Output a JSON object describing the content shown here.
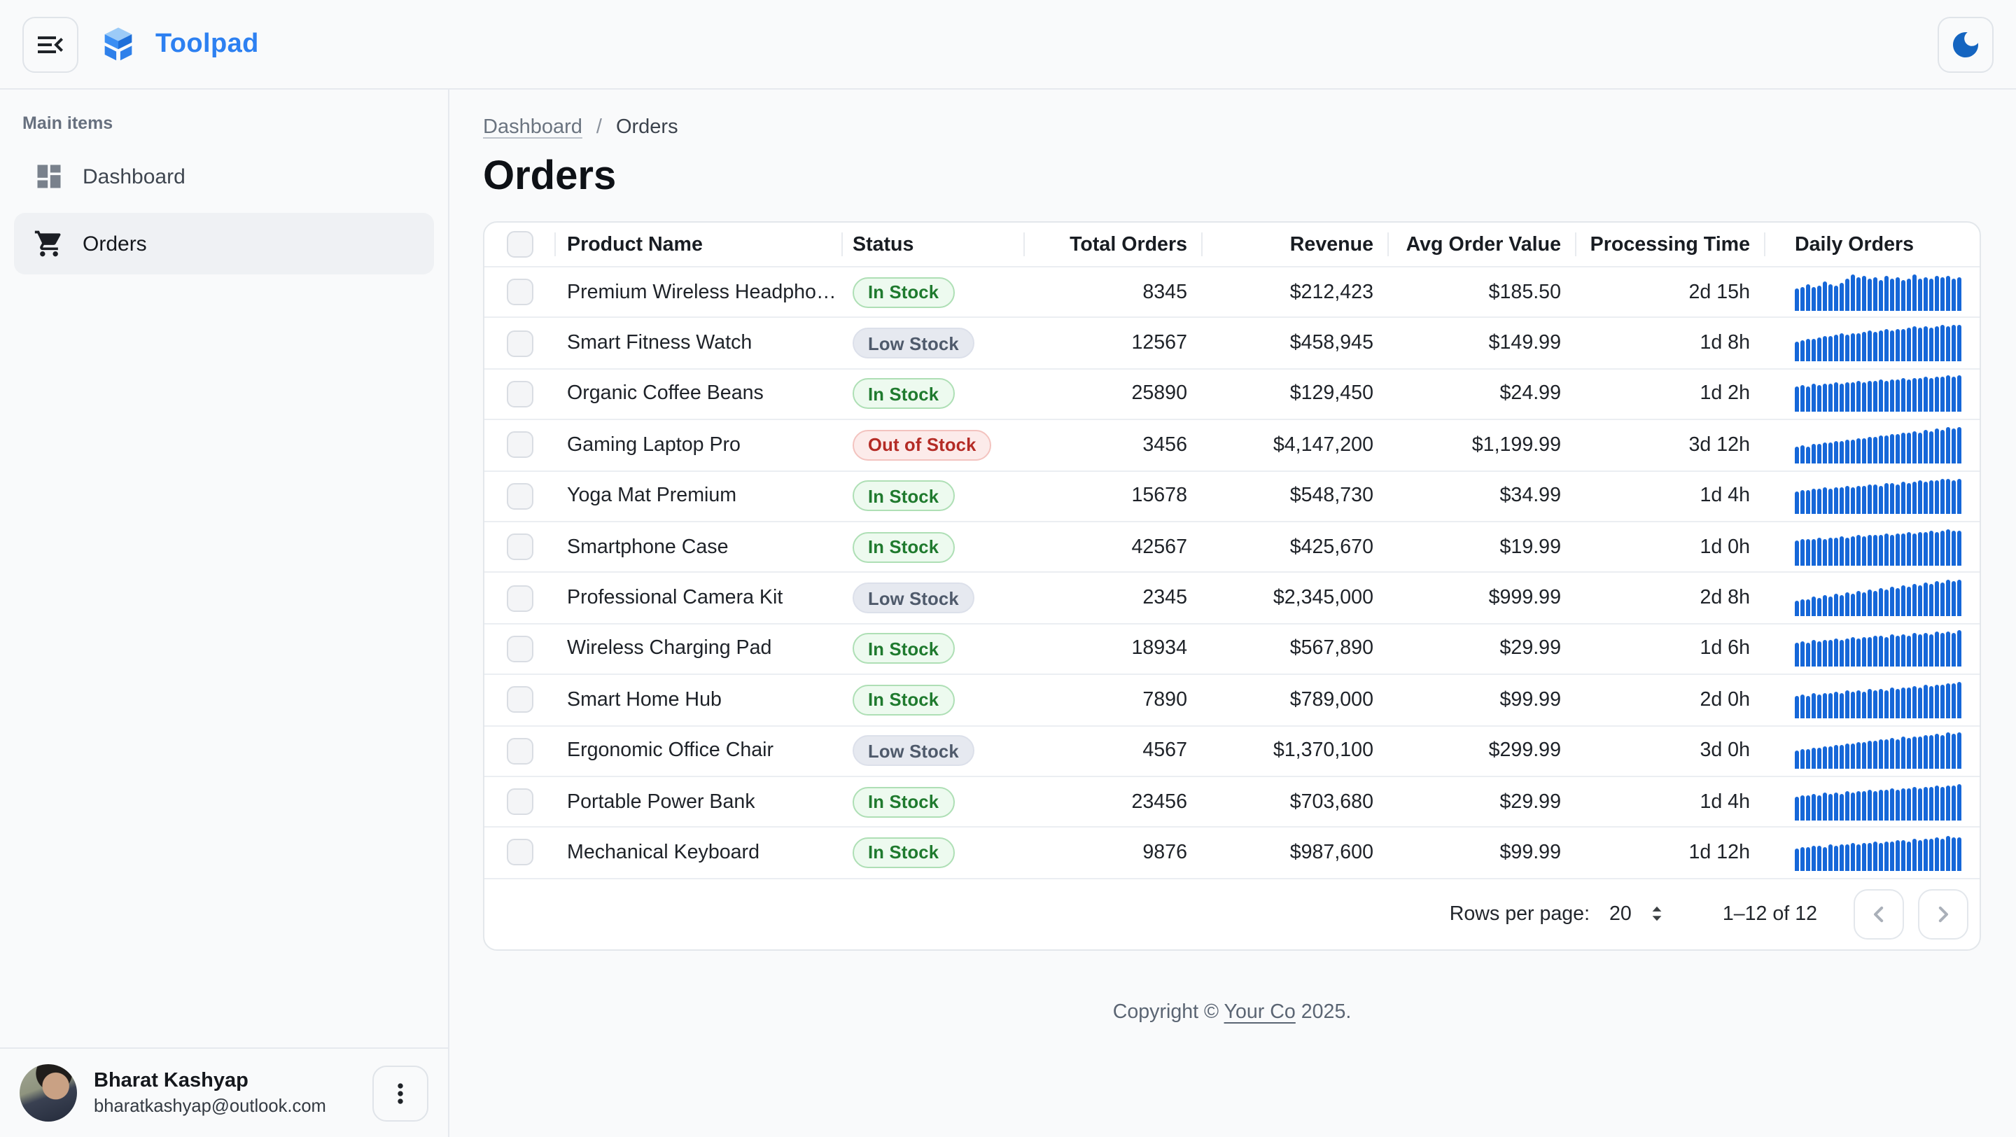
{
  "topbar": {
    "app_name": "Toolpad"
  },
  "sidebar": {
    "section_label": "Main items",
    "items": [
      {
        "label": "Dashboard",
        "icon": "dashboard-icon",
        "active": false
      },
      {
        "label": "Orders",
        "icon": "shopping-cart-icon",
        "active": true
      }
    ]
  },
  "user": {
    "name": "Bharat Kashyap",
    "email": "bharatkashyap@outlook.com"
  },
  "breadcrumb": {
    "link": "Dashboard",
    "separator": "/",
    "current": "Orders"
  },
  "page_title": "Orders",
  "table": {
    "columns": [
      "Product Name",
      "Status",
      "Total Orders",
      "Revenue",
      "Avg Order Value",
      "Processing Time",
      "Daily Orders"
    ],
    "rows": [
      {
        "product": "Premium Wireless Headphones",
        "status": "In Stock",
        "total_orders": "8345",
        "revenue": "$212,423",
        "avg_order_value": "$185.50",
        "processing_time": "2d 15h",
        "daily_orders": [
          0.6,
          0.66,
          0.72,
          0.64,
          0.7,
          0.8,
          0.74,
          0.7,
          0.78,
          0.88,
          1.0,
          0.92,
          0.96,
          0.9,
          0.93,
          0.86,
          0.95,
          0.89,
          0.92,
          0.86,
          0.9,
          0.99,
          0.87,
          0.93,
          0.89,
          0.95,
          0.91,
          0.97,
          0.88,
          0.92
        ]
      },
      {
        "product": "Smart Fitness Watch",
        "status": "Low Stock",
        "total_orders": "12567",
        "revenue": "$458,945",
        "avg_order_value": "$149.99",
        "processing_time": "1d 8h",
        "daily_orders": [
          0.55,
          0.58,
          0.62,
          0.6,
          0.66,
          0.7,
          0.68,
          0.72,
          0.75,
          0.73,
          0.78,
          0.76,
          0.8,
          0.83,
          0.81,
          0.85,
          0.88,
          0.86,
          0.9,
          0.88,
          0.92,
          0.95,
          0.93,
          0.96,
          0.94,
          0.98,
          1.0,
          0.97,
          0.99,
          1.0
        ]
      },
      {
        "product": "Organic Coffee Beans",
        "status": "In Stock",
        "total_orders": "25890",
        "revenue": "$129,450",
        "avg_order_value": "$24.99",
        "processing_time": "1d 2h",
        "daily_orders": [
          0.68,
          0.72,
          0.7,
          0.75,
          0.73,
          0.78,
          0.76,
          0.8,
          0.78,
          0.82,
          0.8,
          0.84,
          0.82,
          0.86,
          0.84,
          0.88,
          0.86,
          0.9,
          0.88,
          0.92,
          0.9,
          0.94,
          0.92,
          0.96,
          0.94,
          0.98,
          0.96,
          1.0,
          0.98,
          1.0
        ]
      },
      {
        "product": "Gaming Laptop Pro",
        "status": "Out of Stock",
        "total_orders": "3456",
        "revenue": "$4,147,200",
        "avg_order_value": "$1,199.99",
        "processing_time": "3d 12h",
        "daily_orders": [
          0.45,
          0.5,
          0.48,
          0.54,
          0.52,
          0.58,
          0.56,
          0.62,
          0.6,
          0.66,
          0.64,
          0.7,
          0.68,
          0.74,
          0.72,
          0.78,
          0.76,
          0.82,
          0.8,
          0.86,
          0.84,
          0.88,
          0.86,
          0.92,
          0.9,
          0.96,
          0.94,
          1.0,
          0.98,
          1.0
        ]
      },
      {
        "product": "Yoga Mat Premium",
        "status": "In Stock",
        "total_orders": "15678",
        "revenue": "$548,730",
        "avg_order_value": "$34.99",
        "processing_time": "1d 4h",
        "daily_orders": [
          0.62,
          0.66,
          0.64,
          0.7,
          0.68,
          0.72,
          0.7,
          0.74,
          0.72,
          0.76,
          0.74,
          0.78,
          0.76,
          0.8,
          0.82,
          0.78,
          0.84,
          0.86,
          0.82,
          0.88,
          0.86,
          0.9,
          0.92,
          0.88,
          0.94,
          0.92,
          0.96,
          0.98,
          0.94,
          0.96
        ]
      },
      {
        "product": "Smartphone Case",
        "status": "In Stock",
        "total_orders": "42567",
        "revenue": "$425,670",
        "avg_order_value": "$19.99",
        "processing_time": "1d 0h",
        "daily_orders": [
          0.7,
          0.72,
          0.74,
          0.72,
          0.76,
          0.74,
          0.78,
          0.76,
          0.8,
          0.78,
          0.82,
          0.84,
          0.8,
          0.84,
          0.86,
          0.84,
          0.88,
          0.86,
          0.9,
          0.88,
          0.92,
          0.9,
          0.94,
          0.92,
          0.96,
          0.94,
          0.98,
          1.0,
          0.96,
          0.98
        ]
      },
      {
        "product": "Professional Camera Kit",
        "status": "Low Stock",
        "total_orders": "2345",
        "revenue": "$2,345,000",
        "avg_order_value": "$999.99",
        "processing_time": "2d 8h",
        "daily_orders": [
          0.42,
          0.48,
          0.45,
          0.52,
          0.5,
          0.56,
          0.54,
          0.6,
          0.58,
          0.64,
          0.62,
          0.68,
          0.66,
          0.72,
          0.7,
          0.76,
          0.74,
          0.8,
          0.78,
          0.84,
          0.82,
          0.88,
          0.86,
          0.92,
          0.9,
          0.96,
          0.94,
          1.0,
          0.98,
          1.0
        ]
      },
      {
        "product": "Wireless Charging Pad",
        "status": "In Stock",
        "total_orders": "18934",
        "revenue": "$567,890",
        "avg_order_value": "$29.99",
        "processing_time": "1d 6h",
        "daily_orders": [
          0.64,
          0.68,
          0.66,
          0.72,
          0.7,
          0.74,
          0.72,
          0.78,
          0.74,
          0.78,
          0.8,
          0.76,
          0.82,
          0.8,
          0.84,
          0.86,
          0.82,
          0.88,
          0.84,
          0.9,
          0.86,
          0.92,
          0.88,
          0.94,
          0.9,
          0.96,
          0.92,
          0.98,
          0.94,
          1.0
        ]
      },
      {
        "product": "Smart Home Hub",
        "status": "In Stock",
        "total_orders": "7890",
        "revenue": "$789,000",
        "avg_order_value": "$99.99",
        "processing_time": "2d 0h",
        "daily_orders": [
          0.6,
          0.64,
          0.62,
          0.68,
          0.66,
          0.7,
          0.68,
          0.74,
          0.7,
          0.76,
          0.72,
          0.78,
          0.74,
          0.8,
          0.76,
          0.82,
          0.78,
          0.84,
          0.8,
          0.86,
          0.84,
          0.9,
          0.86,
          0.92,
          0.88,
          0.94,
          0.92,
          0.98,
          0.96,
          1.0
        ]
      },
      {
        "product": "Ergonomic Office Chair",
        "status": "Low Stock",
        "total_orders": "4567",
        "revenue": "$1,370,100",
        "avg_order_value": "$299.99",
        "processing_time": "3d 0h",
        "daily_orders": [
          0.5,
          0.55,
          0.52,
          0.58,
          0.56,
          0.62,
          0.6,
          0.66,
          0.64,
          0.7,
          0.68,
          0.74,
          0.72,
          0.78,
          0.76,
          0.82,
          0.8,
          0.84,
          0.82,
          0.88,
          0.86,
          0.9,
          0.88,
          0.94,
          0.92,
          0.96,
          0.94,
          1.0,
          0.98,
          1.0
        ]
      },
      {
        "product": "Portable Power Bank",
        "status": "In Stock",
        "total_orders": "23456",
        "revenue": "$703,680",
        "avg_order_value": "$29.99",
        "processing_time": "1d 4h",
        "daily_orders": [
          0.66,
          0.7,
          0.68,
          0.72,
          0.7,
          0.76,
          0.72,
          0.78,
          0.74,
          0.8,
          0.78,
          0.82,
          0.8,
          0.84,
          0.82,
          0.86,
          0.84,
          0.88,
          0.86,
          0.9,
          0.88,
          0.92,
          0.9,
          0.94,
          0.92,
          0.96,
          0.94,
          0.98,
          0.96,
          1.0
        ]
      },
      {
        "product": "Mechanical Keyboard",
        "status": "In Stock",
        "total_orders": "9876",
        "revenue": "$987,600",
        "avg_order_value": "$99.99",
        "processing_time": "1d 12h",
        "daily_orders": [
          0.62,
          0.66,
          0.64,
          0.68,
          0.7,
          0.66,
          0.72,
          0.7,
          0.74,
          0.72,
          0.76,
          0.74,
          0.78,
          0.76,
          0.8,
          0.78,
          0.82,
          0.8,
          0.84,
          0.86,
          0.82,
          0.88,
          0.86,
          0.9,
          0.88,
          0.92,
          0.9,
          0.96,
          0.92,
          0.94
        ]
      }
    ]
  },
  "pagination": {
    "rows_per_page_label": "Rows per page:",
    "rows_per_page": "20",
    "range_label": "1–12 of 12"
  },
  "footer": {
    "prefix": "Copyright © ",
    "company": "Your Co",
    "suffix": " 2025."
  },
  "icons": {
    "sidebar_toggle": "menu-open",
    "logo": "toolpad-blocks",
    "theme_toggle": "dark-mode-moon",
    "dashboard_item": "dashboard-grid",
    "orders_item": "shopping-cart",
    "user_menu": "more-vertical",
    "rows_per_page": "up-down-caret",
    "prev_page": "chevron-left",
    "next_page": "chevron-right"
  },
  "colors": {
    "brand_blue": "#2d80f1",
    "logo_blue_light": "#9ccbf7",
    "logo_blue": "#2f80ea",
    "moon_blue": "#1565c0",
    "sparkline_blue": "#1667d8",
    "status_in_stock": "#1f7a2e",
    "status_in_stock_bg": "#edfaef",
    "status_low_stock": "#4f5a6b",
    "status_low_stock_bg": "#e6e9f0",
    "status_out_of_stock": "#b42b25",
    "status_out_of_stock_bg": "#fcebea",
    "page_bg": "#f9fafb",
    "card_bg": "#ffffff",
    "border": "#e5e8ec"
  }
}
